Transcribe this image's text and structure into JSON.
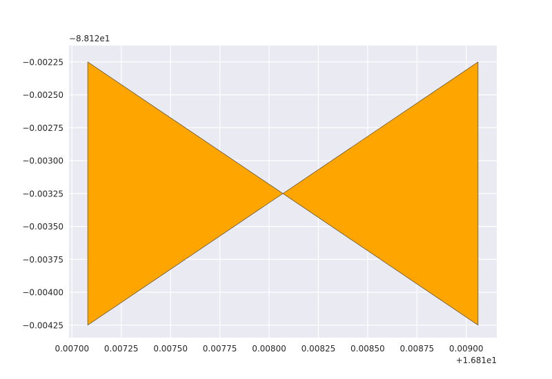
{
  "chart_data": {
    "type": "area",
    "title": "",
    "xlabel": "",
    "ylabel": "",
    "x_offset_text": "+1.681e1",
    "y_offset_text": "−8.812e1",
    "x_offset": 16.81,
    "y_offset": -88.12,
    "xlim": [
      0.006985,
      0.009155
    ],
    "ylim": [
      -0.004345,
      -0.002125
    ],
    "x_ticks": [
      0.007,
      0.00725,
      0.0075,
      0.00775,
      0.008,
      0.00825,
      0.0085,
      0.00875,
      0.009
    ],
    "x_tick_labels": [
      "0.00700",
      "0.00725",
      "0.00750",
      "0.00775",
      "0.00800",
      "0.00825",
      "0.00850",
      "0.00875",
      "0.00900"
    ],
    "y_ticks": [
      -0.00225,
      -0.0025,
      -0.00275,
      -0.003,
      -0.00325,
      -0.0035,
      -0.00375,
      -0.004,
      -0.00425
    ],
    "y_tick_labels": [
      "−0.00225",
      "−0.00250",
      "−0.00275",
      "−0.00300",
      "−0.00325",
      "−0.00350",
      "−0.00375",
      "−0.00400",
      "−0.00425"
    ],
    "grid": true,
    "series": [
      {
        "fill": "#FFA500",
        "edge": "#333333",
        "points": [
          [
            0.00708,
            -0.00225
          ],
          [
            0.00906,
            -0.00425
          ],
          [
            0.00906,
            -0.00225
          ],
          [
            0.00708,
            -0.00425
          ]
        ]
      }
    ]
  }
}
